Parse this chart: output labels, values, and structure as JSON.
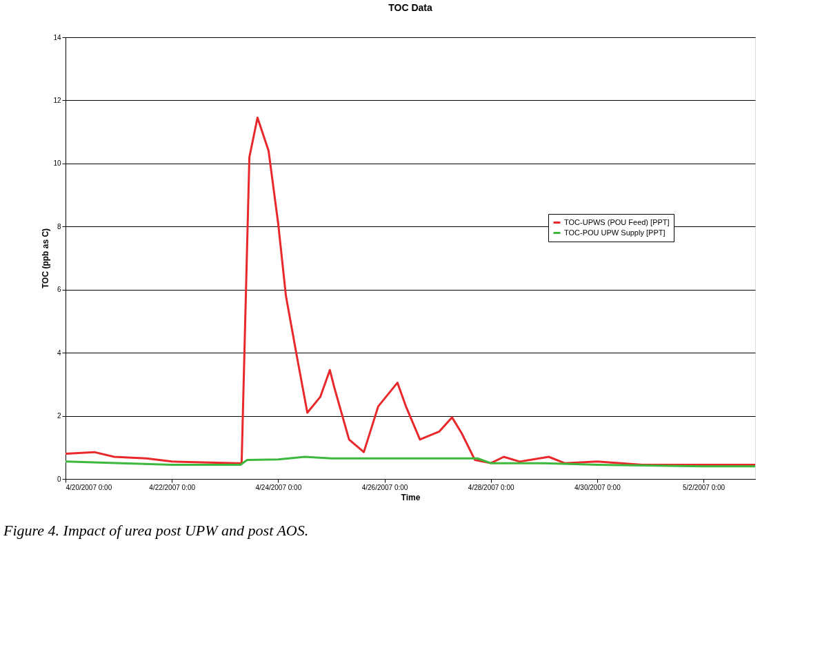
{
  "chart_data": {
    "type": "line",
    "title": "TOC Data",
    "xlabel": "Time",
    "ylabel": "TOC (ppb as C)",
    "annotations": [
      "Figure 4.  Impact of urea post UPW and post AOS."
    ],
    "ylim": [
      0,
      14
    ],
    "yticks": [
      0,
      2,
      4,
      6,
      8,
      10,
      12,
      14
    ],
    "xlim": [
      "2007-04-20T00:00",
      "2007-05-02T23:20"
    ],
    "xticks": [
      {
        "value": "2007-04-20T00:00",
        "label": "4/20/2007 0:00"
      },
      {
        "value": "2007-04-22T00:00",
        "label": "4/22/2007 0:00"
      },
      {
        "value": "2007-04-24T00:00",
        "label": "4/24/2007 0:00"
      },
      {
        "value": "2007-04-26T00:00",
        "label": "4/26/2007 0:00"
      },
      {
        "value": "2007-04-28T00:00",
        "label": "4/28/2007 0:00"
      },
      {
        "value": "2007-04-30T00:00",
        "label": "4/30/2007 0:00"
      },
      {
        "value": "2007-05-02T00:00",
        "label": "5/2/2007 0:00"
      }
    ],
    "grid": "y",
    "legend": "right",
    "marker": "none",
    "line_style": "solid",
    "series": [
      {
        "name": "TOC-UPWS (POU Feed) [PPT]",
        "color": "#e8282b",
        "x": [
          "2007-04-20T00:00",
          "2007-04-20T13:00",
          "2007-04-20T22:00",
          "2007-04-21T12:30",
          "2007-04-22T00:00",
          "2007-04-23T05:45",
          "2007-04-23T07:30",
          "2007-04-23T11:00",
          "2007-04-23T14:40",
          "2007-04-23T19:40",
          "2007-04-24T00:00",
          "2007-04-24T03:30",
          "2007-04-24T08:40",
          "2007-04-24T13:10",
          "2007-04-24T19:00",
          "2007-04-24T23:20",
          "2007-04-25T01:20",
          "2007-04-25T08:00",
          "2007-04-25T14:40",
          "2007-04-25T21:10",
          "2007-04-26T05:50",
          "2007-04-26T09:40",
          "2007-04-26T16:00",
          "2007-04-27T00:40",
          "2007-04-27T06:30",
          "2007-04-27T10:50",
          "2007-04-27T16:50",
          "2007-04-28T00:00",
          "2007-04-28T05:50",
          "2007-04-28T13:00",
          "2007-04-29T02:10",
          "2007-04-29T09:20",
          "2007-04-30T00:00",
          "2007-04-30T20:20",
          "2007-05-02T00:00",
          "2007-05-02T23:20"
        ],
        "values": [
          0.8,
          0.85,
          0.7,
          0.65,
          0.55,
          0.5,
          0.5,
          10.2,
          11.45,
          10.4,
          8.1,
          5.8,
          3.8,
          2.1,
          2.6,
          3.45,
          2.9,
          1.25,
          0.85,
          2.3,
          3.05,
          2.3,
          1.25,
          1.5,
          1.95,
          1.45,
          0.6,
          0.5,
          0.7,
          0.55,
          0.7,
          0.5,
          0.55,
          0.45,
          0.45,
          0.45
        ]
      },
      {
        "name": "TOC-POU UPW Supply [PPT]",
        "color": "#3cb83c",
        "x": [
          "2007-04-20T00:00",
          "2007-04-22T00:00",
          "2007-04-23T07:00",
          "2007-04-23T10:00",
          "2007-04-24T00:00",
          "2007-04-24T12:00",
          "2007-04-25T00:00",
          "2007-04-26T00:00",
          "2007-04-27T00:00",
          "2007-04-27T18:00",
          "2007-04-28T00:00",
          "2007-04-29T00:00",
          "2007-04-30T00:00",
          "2007-05-02T00:00",
          "2007-05-02T23:20"
        ],
        "values": [
          0.55,
          0.45,
          0.45,
          0.6,
          0.62,
          0.7,
          0.65,
          0.65,
          0.65,
          0.65,
          0.5,
          0.5,
          0.45,
          0.4,
          0.4
        ]
      }
    ]
  }
}
